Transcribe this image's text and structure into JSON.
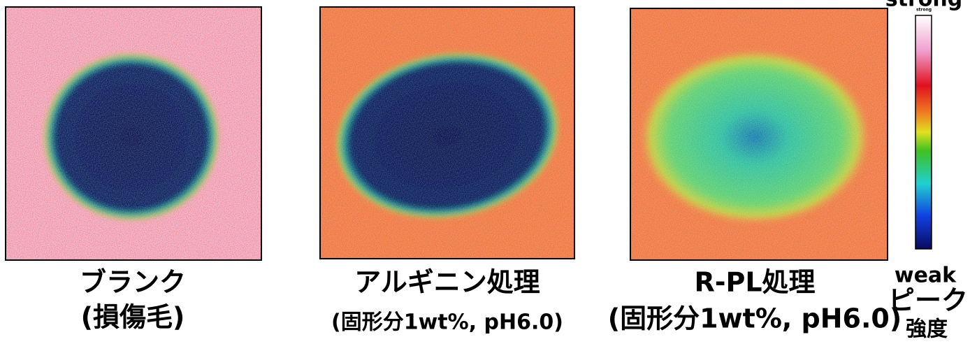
{
  "panels": [
    {
      "title": "ブランク",
      "subtitle": "(損傷毛)"
    },
    {
      "title": "アルギニン処理",
      "subtitle": "(固形分1wt%, pH6.0)"
    },
    {
      "title": "R-PL処理",
      "subtitle": "(固形分1wt%, pH6.0)"
    }
  ],
  "colorbar": {
    "top_label": "strong",
    "top_small_label": "strong",
    "bottom_label": "weak",
    "title_line1": "ピーク",
    "title_line2": "強度"
  }
}
